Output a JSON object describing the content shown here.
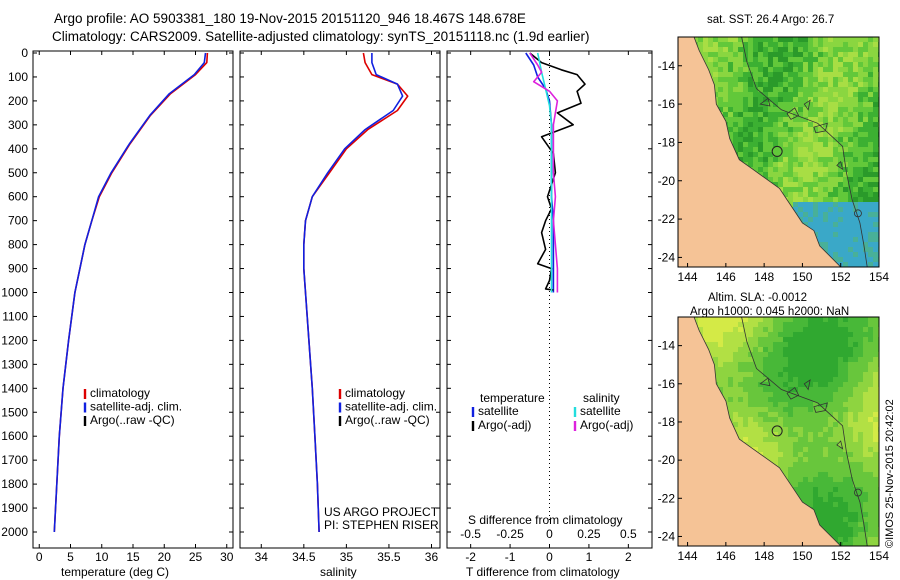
{
  "header": {
    "line1": "Argo profile: AO 5903381_180 19-Nov-2015 20151120_946 18.467S 148.678E",
    "line2": "Climatology: CARS2009. Satellite-adjusted climatology: synTS_20151118.nc (1.9d earlier)"
  },
  "colors": {
    "climatology": "#dd0000",
    "satellite": "#1020e0",
    "argo": "#000000",
    "sal_satellite": "#22dddd",
    "sal_argo": "#dd22dd",
    "land": "#f5c396"
  },
  "chart_data": [
    {
      "type": "line",
      "name": "temperature-profile",
      "xlabel": "temperature (deg C)",
      "xlim": [
        -1,
        31
      ],
      "xticks": [
        "0",
        "5",
        "10",
        "15",
        "20",
        "25",
        "30"
      ],
      "ylim": [
        2080,
        0
      ],
      "yticks": [
        "0",
        "100",
        "200",
        "300",
        "400",
        "500",
        "600",
        "700",
        "800",
        "900",
        "1000",
        "1100",
        "1200",
        "1300",
        "1400",
        "1500",
        "1600",
        "1700",
        "1800",
        "1900",
        "2000"
      ],
      "legend": [
        "climatology",
        "satellite-adj. clim.",
        "Argo(..raw -QC)"
      ],
      "series": [
        {
          "name": "climatology",
          "color_key": "climatology",
          "points": [
            [
              26.9,
              0
            ],
            [
              26.8,
              40
            ],
            [
              25.0,
              90
            ],
            [
              21.0,
              170
            ],
            [
              17.8,
              260
            ],
            [
              14.5,
              380
            ],
            [
              11.6,
              500
            ],
            [
              9.6,
              600
            ],
            [
              8.4,
              700
            ],
            [
              7.3,
              800
            ],
            [
              6.5,
              900
            ],
            [
              5.7,
              1000
            ],
            [
              4.7,
              1200
            ],
            [
              3.8,
              1400
            ],
            [
              3.2,
              1600
            ],
            [
              2.8,
              1800
            ],
            [
              2.4,
              2000
            ]
          ]
        },
        {
          "name": "satellite-adj. clim.",
          "color_key": "satellite",
          "points": [
            [
              26.6,
              0
            ],
            [
              26.4,
              40
            ],
            [
              24.8,
              90
            ],
            [
              20.8,
              170
            ],
            [
              17.7,
              260
            ],
            [
              14.4,
              380
            ],
            [
              11.5,
              500
            ],
            [
              9.5,
              600
            ],
            [
              8.4,
              700
            ],
            [
              7.3,
              800
            ],
            [
              6.5,
              900
            ],
            [
              5.7,
              1000
            ],
            [
              4.7,
              1200
            ],
            [
              3.8,
              1400
            ],
            [
              3.2,
              1600
            ],
            [
              2.8,
              1800
            ],
            [
              2.4,
              2000
            ]
          ]
        }
      ],
      "annotations": []
    },
    {
      "type": "line",
      "name": "salinity-profile",
      "xlabel": "salinity",
      "xlim": [
        33.75,
        36.1
      ],
      "xticks": [
        "34",
        "34.5",
        "35",
        "35.5",
        "36"
      ],
      "ylim": [
        2080,
        0
      ],
      "legend": [
        "climatology",
        "satellite-adj. clim.",
        "Argo(..raw -QC)"
      ],
      "series": [
        {
          "name": "climatology",
          "color_key": "climatology",
          "points": [
            [
              35.2,
              0
            ],
            [
              35.22,
              40
            ],
            [
              35.3,
              90
            ],
            [
              35.6,
              130
            ],
            [
              35.72,
              180
            ],
            [
              35.6,
              240
            ],
            [
              35.25,
              320
            ],
            [
              35.0,
              400
            ],
            [
              34.8,
              500
            ],
            [
              34.6,
              600
            ],
            [
              34.52,
              700
            ],
            [
              34.5,
              800
            ],
            [
              34.5,
              900
            ],
            [
              34.52,
              1000
            ],
            [
              34.56,
              1200
            ],
            [
              34.6,
              1400
            ],
            [
              34.63,
              1600
            ],
            [
              34.66,
              1800
            ],
            [
              34.68,
              2000
            ]
          ]
        },
        {
          "name": "satellite-adj. clim.",
          "color_key": "satellite",
          "points": [
            [
              35.3,
              0
            ],
            [
              35.3,
              40
            ],
            [
              35.35,
              90
            ],
            [
              35.6,
              130
            ],
            [
              35.66,
              180
            ],
            [
              35.55,
              240
            ],
            [
              35.22,
              320
            ],
            [
              34.98,
              400
            ],
            [
              34.78,
              500
            ],
            [
              34.6,
              600
            ],
            [
              34.52,
              700
            ],
            [
              34.5,
              800
            ],
            [
              34.5,
              900
            ],
            [
              34.52,
              1000
            ],
            [
              34.56,
              1200
            ],
            [
              34.6,
              1400
            ],
            [
              34.63,
              1600
            ],
            [
              34.66,
              1800
            ],
            [
              34.68,
              2000
            ]
          ]
        }
      ],
      "annotations": [
        "US ARGO PROJECT",
        "PI: STEPHEN RISER"
      ]
    },
    {
      "type": "line",
      "name": "difference-profile",
      "xlabel": "T difference from climatology",
      "xlabel2": "S difference from climatology",
      "xlim": [
        -2.6,
        2.6
      ],
      "xticks": [
        "-2",
        "-1",
        "0",
        "1",
        "2"
      ],
      "xticks_top": [
        "-0.5",
        "-0.25",
        "0",
        "0.25",
        "0.5"
      ],
      "ylim": [
        2080,
        0
      ],
      "legend_left_title": "temperature",
      "legend_right_title": "salinity",
      "legend_left": [
        "satellite",
        "Argo(-adj)"
      ],
      "legend_right": [
        "satellite",
        "Argo(-adj)"
      ],
      "series": [
        {
          "name": "T satellite",
          "color_key": "satellite",
          "points": [
            [
              -0.6,
              0
            ],
            [
              -0.4,
              50
            ],
            [
              -0.3,
              100
            ],
            [
              -0.1,
              150
            ],
            [
              0.0,
              200
            ],
            [
              0.05,
              300
            ],
            [
              0.05,
              400
            ],
            [
              0.05,
              500
            ],
            [
              0.05,
              600
            ],
            [
              0.1,
              700
            ],
            [
              0.1,
              800
            ],
            [
              0.1,
              900
            ],
            [
              0.1,
              1000
            ]
          ]
        },
        {
          "name": "T argo",
          "color_key": "argo",
          "points": [
            [
              -0.5,
              0
            ],
            [
              -0.2,
              40
            ],
            [
              0.3,
              70
            ],
            [
              0.7,
              90
            ],
            [
              0.9,
              130
            ],
            [
              0.7,
              160
            ],
            [
              0.8,
              210
            ],
            [
              0.2,
              250
            ],
            [
              0.6,
              300
            ],
            [
              -0.2,
              350
            ],
            [
              0.1,
              420
            ],
            [
              0.15,
              500
            ],
            [
              -0.05,
              600
            ],
            [
              0.05,
              650
            ],
            [
              -0.1,
              700
            ],
            [
              -0.2,
              750
            ],
            [
              -0.1,
              820
            ],
            [
              -0.3,
              880
            ],
            [
              0.05,
              900
            ],
            [
              0.0,
              950
            ],
            [
              -0.1,
              985
            ],
            [
              0.1,
              990
            ]
          ]
        },
        {
          "name": "S satellite",
          "color_key": "sal_satellite",
          "points": [
            [
              -0.3,
              0
            ],
            [
              -0.2,
              80
            ],
            [
              -0.1,
              150
            ],
            [
              0.0,
              220
            ],
            [
              0.05,
              300
            ],
            [
              0.05,
              400
            ],
            [
              0.05,
              500
            ],
            [
              0.05,
              600
            ],
            [
              0.05,
              700
            ],
            [
              0.05,
              800
            ],
            [
              0.05,
              900
            ],
            [
              0.05,
              1000
            ]
          ]
        },
        {
          "name": "S argo",
          "color_key": "sal_argo",
          "points": [
            [
              -0.5,
              0
            ],
            [
              -0.3,
              50
            ],
            [
              -0.2,
              80
            ],
            [
              -0.4,
              120
            ],
            [
              0.0,
              160
            ],
            [
              0.2,
              200
            ],
            [
              0.1,
              300
            ],
            [
              0.1,
              400
            ],
            [
              0.1,
              500
            ],
            [
              0.15,
              600
            ],
            [
              0.1,
              700
            ],
            [
              0.15,
              800
            ],
            [
              0.2,
              900
            ],
            [
              0.2,
              1000
            ]
          ]
        }
      ]
    },
    {
      "type": "heatmap",
      "name": "sst-map",
      "title": "sat. SST: 26.4  Argo: 26.7",
      "xticks": [
        "144",
        "146",
        "148",
        "150",
        "152",
        "154"
      ],
      "yticks": [
        "-14",
        "-16",
        "-18",
        "-20",
        "-22",
        "-24"
      ],
      "xlim": [
        143.5,
        154
      ],
      "ylim": [
        -24.5,
        -12.5
      ],
      "marker": {
        "lon": 148.68,
        "lat": -18.47
      }
    },
    {
      "type": "heatmap",
      "name": "sla-map",
      "title1": "Altim. SLA: -0.0012",
      "title2": "Argo h1000: 0.045  h2000: NaN",
      "xticks": [
        "144",
        "146",
        "148",
        "150",
        "152",
        "154"
      ],
      "yticks": [
        "-14",
        "-16",
        "-18",
        "-20",
        "-22",
        "-24"
      ],
      "xlim": [
        143.5,
        154
      ],
      "ylim": [
        -24.5,
        -12.5
      ],
      "marker": {
        "lon": 148.68,
        "lat": -18.47
      }
    }
  ],
  "footer": {
    "credit": "©IMOS 25-Nov-2015 20:42:02"
  }
}
